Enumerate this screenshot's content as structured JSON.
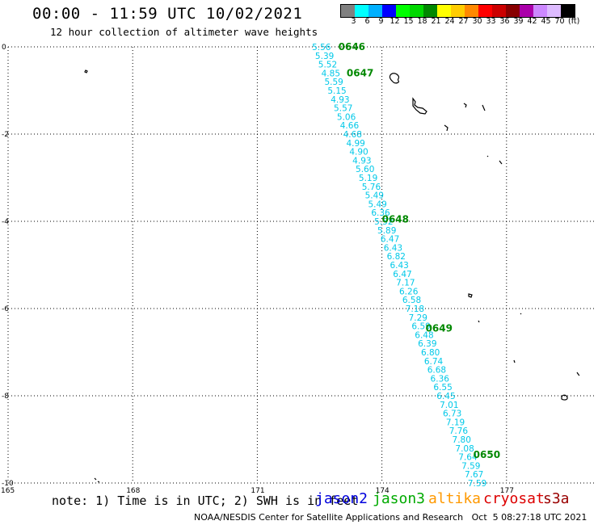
{
  "title": "00:00 - 11:59 UTC 10/02/2021",
  "subtitle": "12 hour collection of altimeter wave heights",
  "legend": {
    "colors": [
      "#808080",
      "#00ffff",
      "#00b0ff",
      "#0000ff",
      "#00ff00",
      "#00d800",
      "#008800",
      "#ffff00",
      "#ffcc00",
      "#ff8800",
      "#ff0000",
      "#cc0000",
      "#880000",
      "#aa00aa",
      "#cc88ff",
      "#ddbbff",
      "#000000"
    ],
    "labels": [
      "3",
      "6",
      "9",
      "12",
      "15",
      "18",
      "21",
      "24",
      "27",
      "30",
      "33",
      "36",
      "39",
      "42",
      "45",
      "70"
    ],
    "unit": "(ft)"
  },
  "axes": {
    "lon_ticks": [
      "165",
      "168",
      "171",
      "174",
      "177"
    ],
    "lat_ticks": [
      "0",
      "-2",
      "-4",
      "-6",
      "-8",
      "-10"
    ]
  },
  "chart_data": {
    "type": "scatter",
    "xlabel": "",
    "ylabel": "",
    "x_range": [
      165,
      178.5
    ],
    "y_range": [
      -10,
      0
    ],
    "track_color": "#00c8e8",
    "swh_ft": [
      "5.56",
      "5.39",
      "5.52",
      "4.85",
      "5.59",
      "5.15",
      "4.93",
      "5.57",
      "5.06",
      "4.66",
      "4.68",
      "4.99",
      "4.90",
      "4.93",
      "5.60",
      "5.19",
      "5.76",
      "5.49",
      "5.49",
      "6.36",
      "5.52",
      "5.89",
      "6.47",
      "6.43",
      "6.82",
      "6.43",
      "6.47",
      "7.17",
      "6.26",
      "6.58",
      "7.18",
      "7.29",
      "6.59",
      "6.48",
      "6.39",
      "6.80",
      "6.74",
      "6.68",
      "6.36",
      "6.55",
      "6.45",
      "7.01",
      "6.73",
      "7.19",
      "7.76",
      "7.80",
      "7.08",
      "7.64",
      "7.59",
      "7.67",
      "7.59"
    ],
    "track_start": {
      "lon": 172.55,
      "lat": 0.0
    },
    "track_end": {
      "lon": 176.3,
      "lat": -10.0
    },
    "time_labels": [
      {
        "text": "0646",
        "lon": 172.95,
        "lat": 0.0
      },
      {
        "text": "0647",
        "lon": 173.15,
        "lat": -0.6
      },
      {
        "text": "0648",
        "lon": 174.0,
        "lat": -3.95
      },
      {
        "text": "0649",
        "lon": 175.05,
        "lat": -6.45
      },
      {
        "text": "0650",
        "lon": 176.2,
        "lat": -9.35
      }
    ],
    "time_label_color": "#008800"
  },
  "note": "note: 1) Time is in UTC; 2) SWH is in feet",
  "satellites": [
    {
      "name": "jason2",
      "color": "#0000dd"
    },
    {
      "name": "jason3",
      "color": "#00aa00"
    },
    {
      "name": "altika",
      "color": "#ff9900"
    },
    {
      "name": "cryosat",
      "color": "#dd0000"
    },
    {
      "name": "s3a",
      "color": "#990000"
    }
  ],
  "footer": "NOAA/NESDIS Center for Satellite Applications and Research   Oct  5 08:27:18 UTC 2021"
}
